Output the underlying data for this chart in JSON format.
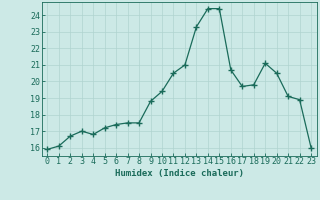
{
  "x": [
    0,
    1,
    2,
    3,
    4,
    5,
    6,
    7,
    8,
    9,
    10,
    11,
    12,
    13,
    14,
    15,
    16,
    17,
    18,
    19,
    20,
    21,
    22,
    23
  ],
  "y": [
    15.9,
    16.1,
    16.7,
    17.0,
    16.8,
    17.2,
    17.4,
    17.5,
    17.5,
    18.8,
    19.4,
    20.5,
    21.0,
    23.3,
    24.4,
    24.4,
    20.7,
    19.7,
    19.8,
    21.1,
    20.5,
    19.1,
    18.9,
    16.0
  ],
  "xlabel": "Humidex (Indice chaleur)",
  "xlim": [
    -0.5,
    23.5
  ],
  "ylim": [
    15.5,
    24.8
  ],
  "yticks": [
    16,
    17,
    18,
    19,
    20,
    21,
    22,
    23,
    24
  ],
  "xticks": [
    0,
    1,
    2,
    3,
    4,
    5,
    6,
    7,
    8,
    9,
    10,
    11,
    12,
    13,
    14,
    15,
    16,
    17,
    18,
    19,
    20,
    21,
    22,
    23
  ],
  "line_color": "#1a6b5a",
  "marker": "+",
  "marker_size": 4,
  "marker_lw": 1.0,
  "line_width": 0.9,
  "bg_color": "#cce9e6",
  "grid_color": "#b0d4d0",
  "axes_color": "#1a6b5a",
  "tick_color": "#1a6b5a",
  "label_color": "#1a6b5a",
  "tick_fontsize": 6,
  "xlabel_fontsize": 6.5
}
